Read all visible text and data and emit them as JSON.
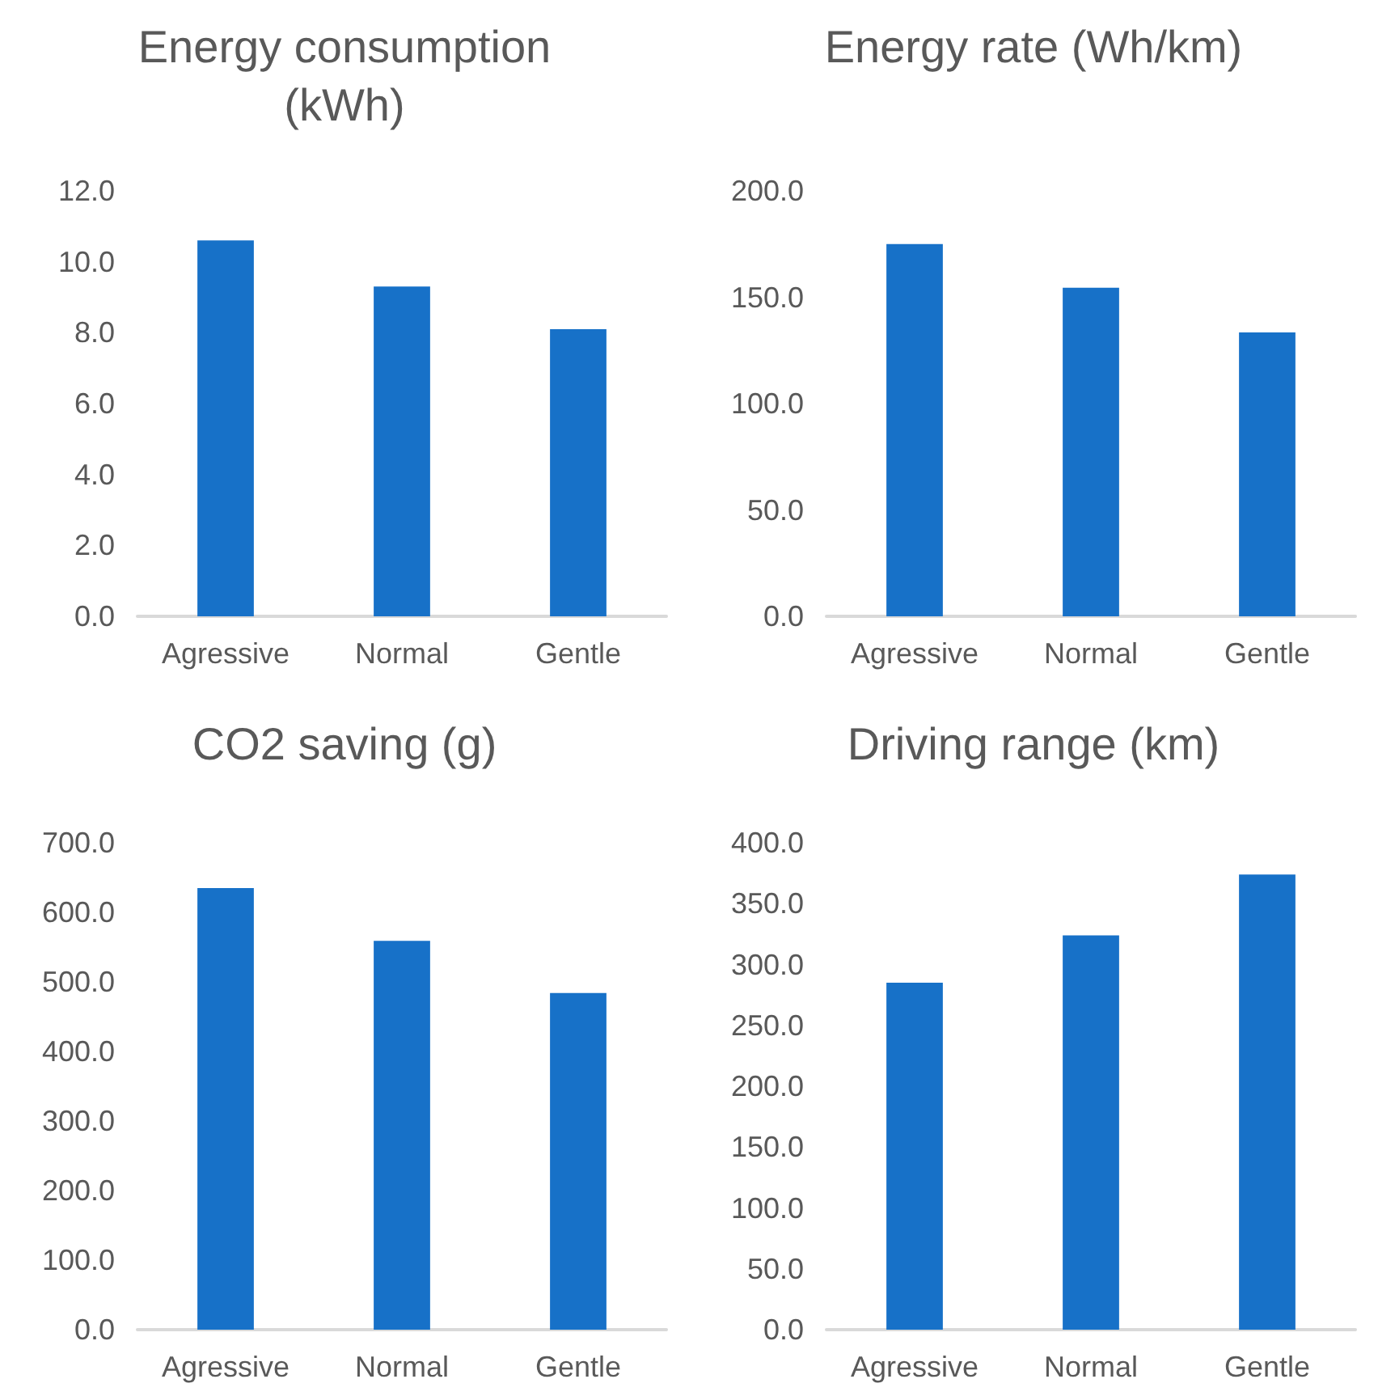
{
  "chart_data": [
    {
      "type": "bar",
      "title": "Energy consumption\n(kWh)",
      "categories": [
        "Agressive",
        "Normal",
        "Gentle"
      ],
      "values": [
        10.6,
        9.3,
        8.1
      ],
      "color": "#1771c8",
      "ylim": [
        0,
        12
      ],
      "yticks": [
        {
          "value": 0,
          "label": "0.0"
        },
        {
          "value": 2,
          "label": "2.0"
        },
        {
          "value": 4,
          "label": "4.0"
        },
        {
          "value": 6,
          "label": "6.0"
        },
        {
          "value": 8,
          "label": "8.0"
        },
        {
          "value": 10,
          "label": "10.0"
        },
        {
          "value": 12,
          "label": "12.0"
        }
      ],
      "grid": false
    },
    {
      "type": "bar",
      "title": "Energy rate (Wh/km)",
      "categories": [
        "Agressive",
        "Normal",
        "Gentle"
      ],
      "values": [
        175,
        154.5,
        133.5
      ],
      "color": "#1771c8",
      "ylim": [
        0,
        200
      ],
      "yticks": [
        {
          "value": 0,
          "label": "0.0"
        },
        {
          "value": 50,
          "label": "50.0"
        },
        {
          "value": 100,
          "label": "100.0"
        },
        {
          "value": 150,
          "label": "150.0"
        },
        {
          "value": 200,
          "label": "200.0"
        }
      ],
      "grid": false
    },
    {
      "type": "bar",
      "title": "CO2 saving (g)",
      "categories": [
        "Agressive",
        "Normal",
        "Gentle"
      ],
      "values": [
        635,
        559,
        484
      ],
      "color": "#1771c8",
      "ylim": [
        0,
        700
      ],
      "yticks": [
        {
          "value": 0,
          "label": "0.0"
        },
        {
          "value": 100,
          "label": "100.0"
        },
        {
          "value": 200,
          "label": "200.0"
        },
        {
          "value": 300,
          "label": "300.0"
        },
        {
          "value": 400,
          "label": "400.0"
        },
        {
          "value": 500,
          "label": "500.0"
        },
        {
          "value": 600,
          "label": "600.0"
        },
        {
          "value": 700,
          "label": "700.0"
        }
      ],
      "grid": false
    },
    {
      "type": "bar",
      "title": "Driving range (km)",
      "categories": [
        "Agressive",
        "Normal",
        "Gentle"
      ],
      "values": [
        285,
        324,
        374
      ],
      "color": "#1771c8",
      "ylim": [
        0,
        400
      ],
      "yticks": [
        {
          "value": 0,
          "label": "0.0"
        },
        {
          "value": 50,
          "label": "50.0"
        },
        {
          "value": 100,
          "label": "100.0"
        },
        {
          "value": 150,
          "label": "150.0"
        },
        {
          "value": 200,
          "label": "200.0"
        },
        {
          "value": 250,
          "label": "250.0"
        },
        {
          "value": 300,
          "label": "300.0"
        },
        {
          "value": 350,
          "label": "350.0"
        },
        {
          "value": 400,
          "label": "400.0"
        }
      ],
      "grid": false
    }
  ]
}
